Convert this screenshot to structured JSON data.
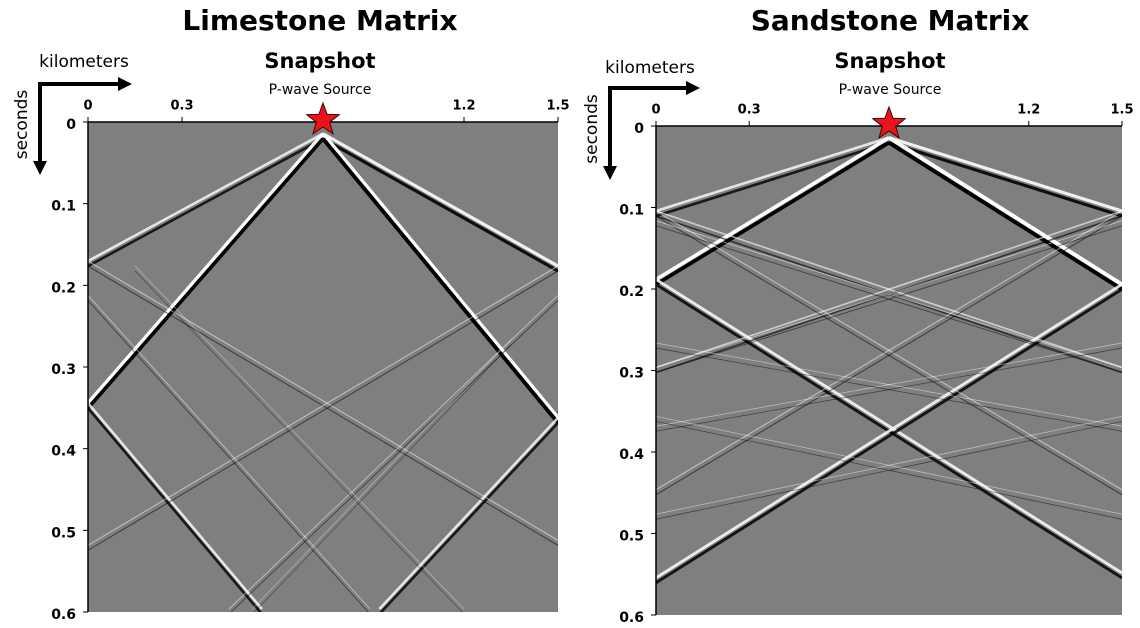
{
  "chart_data": [
    {
      "type": "snapshot",
      "title": "Limestone Matrix",
      "subtitle": "Snapshot",
      "annotation": "P-wave Source",
      "xlabel": "kilometers",
      "ylabel": "seconds",
      "xlim": [
        0,
        1.5
      ],
      "xticks": [
        0,
        0.3,
        1.2,
        1.5
      ],
      "ylim": [
        0,
        0.6
      ],
      "yticks": [
        0,
        0.1,
        0.2,
        0.3,
        0.4,
        0.5,
        0.6
      ],
      "source_x": 0.75,
      "source_color": "#e8141c",
      "background": "#7f7f7f"
    },
    {
      "type": "snapshot",
      "title": "Sandstone Matrix",
      "subtitle": "Snapshot",
      "annotation": "P-wave Source",
      "xlabel": "kilometers",
      "ylabel": "seconds",
      "xlim": [
        0,
        1.5
      ],
      "xticks": [
        0,
        0.3,
        1.2,
        1.5
      ],
      "ylim": [
        0,
        0.6
      ],
      "yticks": [
        0,
        0.1,
        0.2,
        0.3,
        0.4,
        0.5,
        0.6
      ],
      "source_x": 0.75,
      "source_color": "#e8141c",
      "background": "#7f7f7f"
    }
  ]
}
